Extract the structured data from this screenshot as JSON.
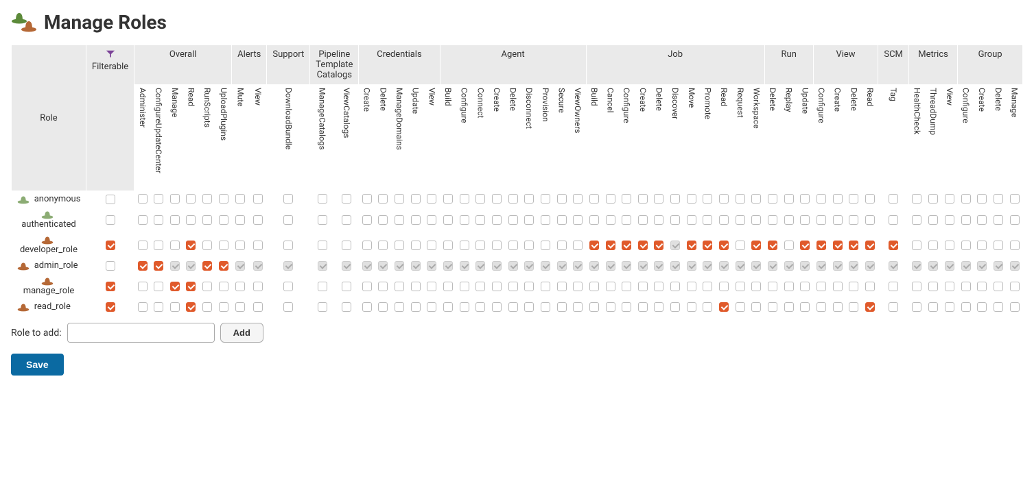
{
  "page_title": "Manage Roles",
  "colors": {
    "checked_bg": "#e05a2b",
    "header_bg": "#eaeaea",
    "save_btn_bg": "#0b6aa2",
    "filter_icon": "#7b4397"
  },
  "columns": {
    "role_label": "Role",
    "filterable_label": "Filterable",
    "groups": [
      {
        "label": "Overall",
        "perms": [
          "Administer",
          "ConfigureUpdateCenter",
          "Manage",
          "Read",
          "RunScripts",
          "UploadPlugins",
          "Mute",
          "View",
          "DownloadBundle"
        ],
        "split_after": 6
      },
      {
        "label": "Alerts",
        "perms": [],
        "share_from": 0,
        "share_idx": [
          6,
          7
        ]
      },
      {
        "label": "Support",
        "perms": [],
        "share_from": 0,
        "share_idx": [
          8
        ]
      },
      {
        "label": "Pipeline Template Catalogs",
        "perms": [
          "ManageCatalogs",
          "ViewCatalogs"
        ]
      },
      {
        "label": "Credentials",
        "perms": [
          "Create",
          "Delete",
          "ManageDomains",
          "Update",
          "View"
        ]
      },
      {
        "label": "Agent",
        "perms": [
          "Build",
          "Configure",
          "Connect",
          "Create",
          "Delete",
          "Disconnect",
          "Provision",
          "Secure",
          "ViewOwners"
        ]
      },
      {
        "label": "Job",
        "perms": [
          "Build",
          "Cancel",
          "Configure",
          "Create",
          "Delete",
          "Discover",
          "Move",
          "Promote",
          "Read",
          "Request",
          "Workspace"
        ]
      },
      {
        "label": "Run",
        "perms": [
          "Delete",
          "Replay",
          "Update"
        ]
      },
      {
        "label": "View",
        "perms": [
          "Configure",
          "Create",
          "Delete",
          "Read"
        ]
      },
      {
        "label": "SCM",
        "perms": [
          "Tag"
        ]
      },
      {
        "label": "Metrics",
        "perms": [
          "HealthCheck",
          "ThreadDump",
          "View"
        ]
      },
      {
        "label": "Group",
        "perms": [
          "Configure",
          "Create",
          "Delete",
          "Manage"
        ]
      }
    ]
  },
  "permissions_flat": [
    "Administer",
    "ConfigureUpdateCenter",
    "Manage",
    "Read",
    "RunScripts",
    "UploadPlugins",
    "Mute",
    "View",
    "DownloadBundle",
    "ManageCatalogs",
    "ViewCatalogs",
    "Create",
    "Delete",
    "ManageDomains",
    "Update",
    "View",
    "Build",
    "Configure",
    "Connect",
    "Create",
    "Delete",
    "Disconnect",
    "Provision",
    "Secure",
    "ViewOwners",
    "Build",
    "Cancel",
    "Configure",
    "Create",
    "Delete",
    "Discover",
    "Move",
    "Promote",
    "Read",
    "Request",
    "Workspace",
    "Delete",
    "Replay",
    "Update",
    "Configure",
    "Create",
    "Delete",
    "Read",
    "Tag",
    "HealthCheck",
    "ThreadDump",
    "View",
    "Configure",
    "Create",
    "Delete",
    "Manage"
  ],
  "group_colspans": [
    {
      "label": "Overall",
      "span": 6
    },
    {
      "label": "Alerts",
      "span": 2
    },
    {
      "label": "Support",
      "span": 1
    },
    {
      "label": "Pipeline Template Catalogs",
      "span": 2
    },
    {
      "label": "Credentials",
      "span": 5
    },
    {
      "label": "Agent",
      "span": 9
    },
    {
      "label": "Job",
      "span": 11
    },
    {
      "label": "Run",
      "span": 3
    },
    {
      "label": "View",
      "span": 4
    },
    {
      "label": "SCM",
      "span": 1
    },
    {
      "label": "Metrics",
      "span": 3
    },
    {
      "label": "Group",
      "span": 4
    }
  ],
  "roles": [
    {
      "name": "anonymous",
      "icon": "system",
      "layout": "inline",
      "filterable": false,
      "cells": [
        0,
        0,
        0,
        0,
        0,
        0,
        0,
        0,
        0,
        0,
        0,
        0,
        0,
        0,
        0,
        0,
        0,
        0,
        0,
        0,
        0,
        0,
        0,
        0,
        0,
        0,
        0,
        0,
        0,
        0,
        0,
        0,
        0,
        0,
        0,
        0,
        0,
        0,
        0,
        0,
        0,
        0,
        0,
        0,
        0,
        0,
        0,
        0,
        0,
        0,
        0
      ]
    },
    {
      "name": "authenticated",
      "icon": "system",
      "layout": "stacked",
      "filterable": false,
      "cells": [
        0,
        0,
        0,
        0,
        0,
        0,
        0,
        0,
        0,
        0,
        0,
        0,
        0,
        0,
        0,
        0,
        0,
        0,
        0,
        0,
        0,
        0,
        0,
        0,
        0,
        0,
        0,
        0,
        0,
        0,
        0,
        0,
        0,
        0,
        0,
        0,
        0,
        0,
        0,
        0,
        0,
        0,
        0,
        0,
        0,
        0,
        0,
        0,
        0,
        0,
        0
      ]
    },
    {
      "name": "developer_role",
      "icon": "user",
      "layout": "stacked",
      "filterable": true,
      "cells": [
        0,
        0,
        0,
        1,
        0,
        0,
        0,
        0,
        0,
        0,
        0,
        0,
        0,
        0,
        0,
        0,
        0,
        0,
        0,
        0,
        0,
        0,
        0,
        0,
        0,
        1,
        1,
        1,
        1,
        1,
        2,
        1,
        1,
        1,
        0,
        1,
        1,
        0,
        1,
        1,
        1,
        1,
        1,
        1,
        0,
        0,
        0,
        0,
        0,
        0,
        0
      ]
    },
    {
      "name": "admin_role",
      "icon": "user",
      "layout": "inline",
      "filterable": false,
      "cells": [
        1,
        1,
        2,
        2,
        1,
        1,
        2,
        2,
        2,
        2,
        2,
        2,
        2,
        2,
        2,
        2,
        2,
        2,
        2,
        2,
        2,
        2,
        2,
        2,
        2,
        2,
        2,
        2,
        2,
        2,
        2,
        2,
        2,
        2,
        2,
        2,
        2,
        2,
        2,
        2,
        2,
        2,
        2,
        2,
        2,
        2,
        2,
        2,
        2,
        2,
        2
      ]
    },
    {
      "name": "manage_role",
      "icon": "user",
      "layout": "stacked",
      "filterable": true,
      "cells": [
        0,
        0,
        1,
        1,
        0,
        0,
        0,
        0,
        0,
        0,
        0,
        0,
        0,
        0,
        0,
        0,
        0,
        0,
        0,
        0,
        0,
        0,
        0,
        0,
        0,
        0,
        0,
        0,
        0,
        0,
        0,
        0,
        0,
        0,
        0,
        0,
        0,
        0,
        0,
        0,
        0,
        0,
        0,
        0,
        0,
        0,
        0,
        0,
        0,
        0,
        0
      ]
    },
    {
      "name": "read_role",
      "icon": "user",
      "layout": "inline",
      "filterable": true,
      "cells": [
        0,
        0,
        0,
        1,
        0,
        0,
        0,
        0,
        0,
        0,
        0,
        0,
        0,
        0,
        0,
        0,
        0,
        0,
        0,
        0,
        0,
        0,
        0,
        0,
        0,
        0,
        0,
        0,
        0,
        0,
        0,
        0,
        0,
        1,
        0,
        0,
        0,
        0,
        0,
        0,
        0,
        0,
        1,
        0,
        0,
        0,
        0,
        0,
        0,
        0,
        0
      ]
    }
  ],
  "add_role": {
    "label": "Role to add:",
    "placeholder": "",
    "button": "Add"
  },
  "save_button": "Save"
}
